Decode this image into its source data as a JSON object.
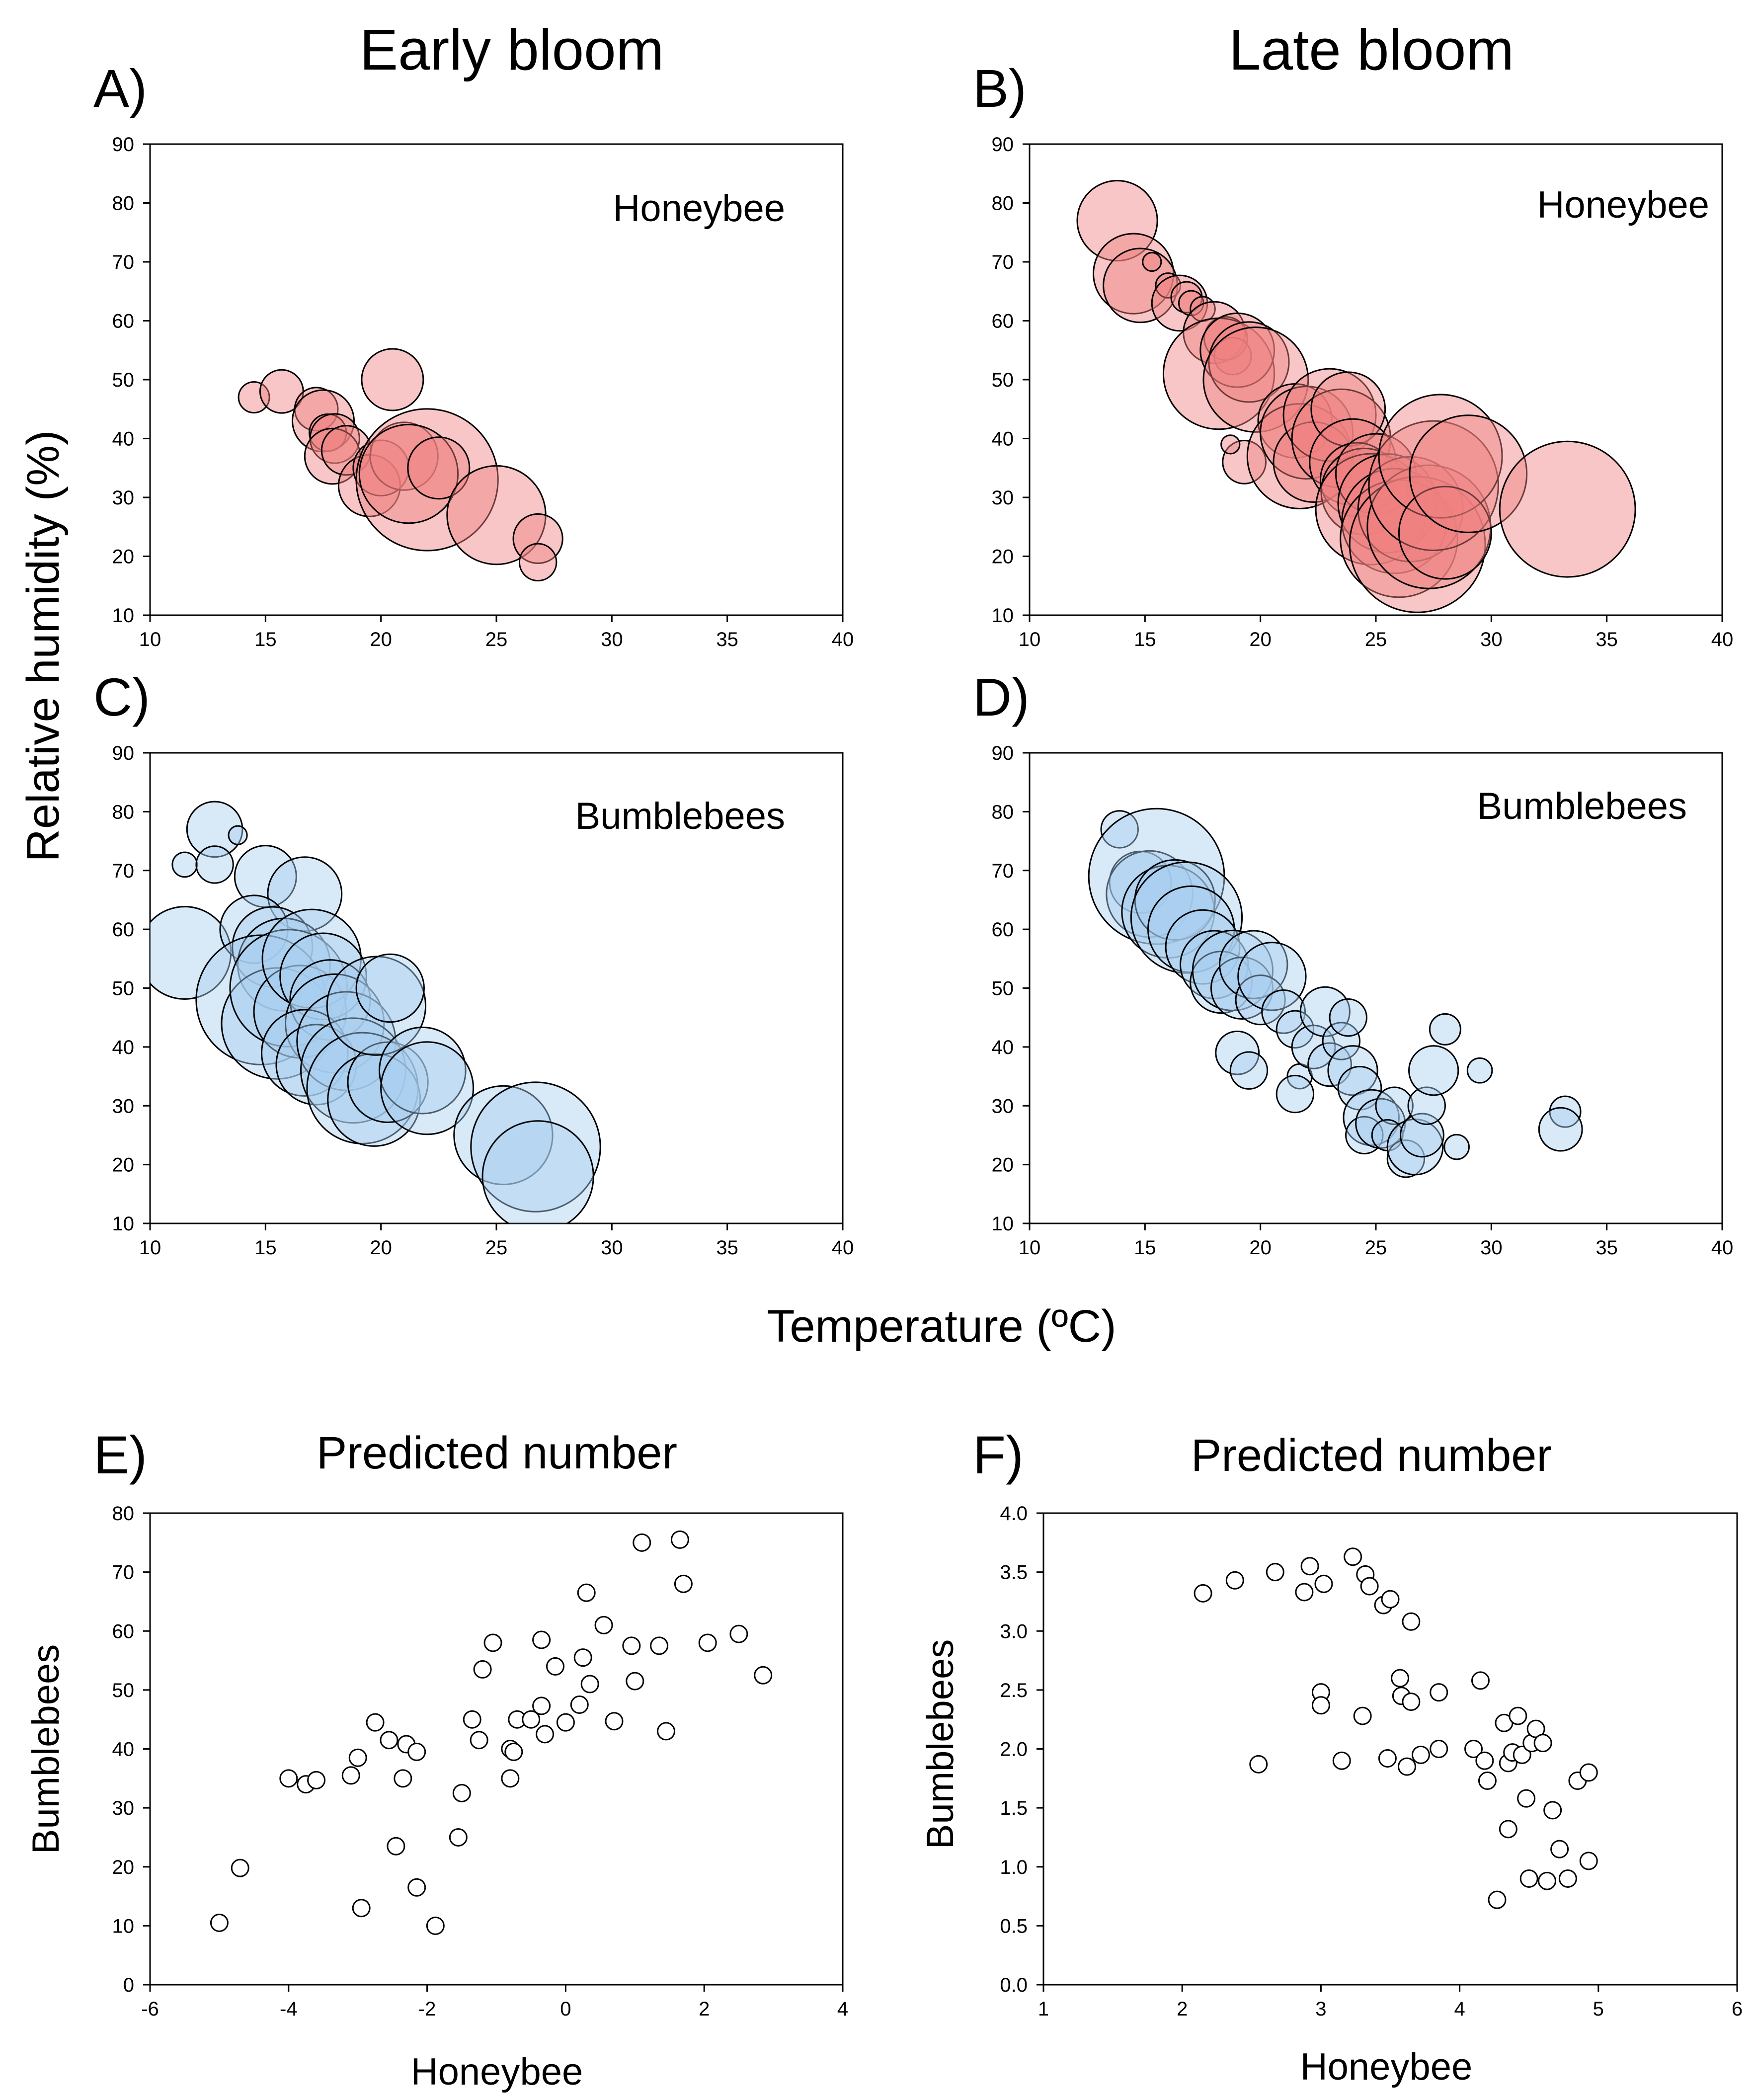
{
  "figure": {
    "col_titles": [
      "Early bloom",
      "Late bloom"
    ],
    "shared_ylabel": "Relative humidity (%)",
    "shared_xlabel": "Temperature (ºC)"
  },
  "chart_data": [
    {
      "id": "A",
      "letter": "A)",
      "type": "scatter",
      "subtype": "bubble",
      "title": "Honeybee",
      "xlim": [
        10,
        40
      ],
      "ylim": [
        10,
        90
      ],
      "xticks": [
        10,
        15,
        20,
        25,
        30,
        35,
        40
      ],
      "yticks": [
        10,
        20,
        30,
        40,
        50,
        60,
        70,
        80,
        90
      ],
      "color": "#f08080",
      "points": [
        [
          14.5,
          47,
          0.5
        ],
        [
          15.7,
          48,
          0.7
        ],
        [
          17.2,
          45,
          0.7
        ],
        [
          17.5,
          43,
          1.0
        ],
        [
          17.7,
          41,
          0.6
        ],
        [
          18.0,
          40,
          0.8
        ],
        [
          17.9,
          37,
          0.9
        ],
        [
          18.5,
          38,
          0.8
        ],
        [
          19.5,
          32,
          1.0
        ],
        [
          20.5,
          50,
          1.0
        ],
        [
          20.0,
          35,
          0.9
        ],
        [
          21.0,
          37,
          1.1
        ],
        [
          22.0,
          33,
          2.3
        ],
        [
          21.2,
          34,
          1.6
        ],
        [
          22.5,
          35,
          1.0
        ],
        [
          25.0,
          27,
          1.6
        ],
        [
          26.8,
          23,
          0.8
        ],
        [
          26.8,
          19,
          0.6
        ]
      ]
    },
    {
      "id": "B",
      "letter": "B)",
      "type": "scatter",
      "subtype": "bubble",
      "title": "Honeybee",
      "xlim": [
        10,
        40
      ],
      "ylim": [
        10,
        90
      ],
      "xticks": [
        10,
        15,
        20,
        25,
        30,
        35,
        40
      ],
      "yticks": [
        10,
        20,
        30,
        40,
        50,
        60,
        70,
        80,
        90
      ],
      "color": "#f08080",
      "points": [
        [
          13.8,
          77,
          1.3
        ],
        [
          14.5,
          68,
          1.3
        ],
        [
          14.8,
          66,
          1.2
        ],
        [
          15.3,
          70,
          0.3
        ],
        [
          16.0,
          66,
          0.4
        ],
        [
          16.5,
          63,
          0.9
        ],
        [
          16.8,
          64,
          0.5
        ],
        [
          17.0,
          63,
          0.4
        ],
        [
          17.5,
          62,
          0.4
        ],
        [
          18.0,
          58,
          1.0
        ],
        [
          18.5,
          57,
          0.7
        ],
        [
          18.8,
          54,
          0.6
        ],
        [
          18.2,
          51,
          1.8
        ],
        [
          19.0,
          55,
          1.2
        ],
        [
          19.5,
          53,
          1.3
        ],
        [
          19.8,
          50,
          1.7
        ],
        [
          19.3,
          36,
          0.7
        ],
        [
          18.7,
          39,
          0.3
        ],
        [
          21.5,
          43,
          1.2
        ],
        [
          21.7,
          37,
          1.7
        ],
        [
          22.0,
          41,
          1.5
        ],
        [
          22.3,
          36,
          1.3
        ],
        [
          23.0,
          44,
          1.5
        ],
        [
          23.5,
          40,
          1.6
        ],
        [
          23.8,
          45,
          1.2
        ],
        [
          24.0,
          36,
          1.4
        ],
        [
          24.2,
          33,
          1.2
        ],
        [
          24.5,
          31,
          1.4
        ],
        [
          24.8,
          28,
          1.8
        ],
        [
          25.0,
          34,
          1.3
        ],
        [
          25.5,
          29,
          1.6
        ],
        [
          25.8,
          26,
          1.7
        ],
        [
          26.0,
          23,
          1.9
        ],
        [
          26.5,
          28,
          1.7
        ],
        [
          26.8,
          22,
          2.2
        ],
        [
          27.3,
          25,
          2.0
        ],
        [
          27.5,
          32,
          2.1
        ],
        [
          27.8,
          37,
          2.0
        ],
        [
          28.0,
          24,
          1.5
        ],
        [
          29.0,
          34,
          1.9
        ],
        [
          33.3,
          28,
          2.2
        ]
      ]
    },
    {
      "id": "C",
      "letter": "C)",
      "type": "scatter",
      "subtype": "bubble",
      "title": "Bumblebees",
      "xlim": [
        10,
        40
      ],
      "ylim": [
        10,
        90
      ],
      "xticks": [
        10,
        15,
        20,
        25,
        30,
        35,
        40
      ],
      "yticks": [
        10,
        20,
        30,
        40,
        50,
        60,
        70,
        80,
        90
      ],
      "color": "#a8cef0",
      "points": [
        [
          11.5,
          71,
          0.4
        ],
        [
          12.8,
          77,
          0.9
        ],
        [
          12.8,
          71,
          0.6
        ],
        [
          13.8,
          76,
          0.3
        ],
        [
          11.5,
          56,
          1.5
        ],
        [
          15.0,
          69,
          1.0
        ],
        [
          16.7,
          66,
          1.2
        ],
        [
          14.5,
          60,
          1.1
        ],
        [
          15.3,
          57,
          1.3
        ],
        [
          15.8,
          54,
          1.5
        ],
        [
          14.8,
          48,
          2.1
        ],
        [
          15.5,
          44,
          1.8
        ],
        [
          16.0,
          50,
          1.9
        ],
        [
          16.5,
          46,
          1.5
        ],
        [
          17.0,
          55,
          1.6
        ],
        [
          17.5,
          52,
          1.4
        ],
        [
          17.8,
          48,
          1.3
        ],
        [
          18.0,
          44,
          1.6
        ],
        [
          16.7,
          39,
          1.4
        ],
        [
          17.2,
          37,
          1.3
        ],
        [
          18.5,
          41,
          1.6
        ],
        [
          18.8,
          36,
          1.7
        ],
        [
          19.2,
          33,
          1.8
        ],
        [
          19.7,
          31,
          1.5
        ],
        [
          20.3,
          34,
          1.3
        ],
        [
          19.8,
          47,
          1.6
        ],
        [
          20.4,
          50,
          1.1
        ],
        [
          21.8,
          36,
          1.4
        ],
        [
          22.0,
          33,
          1.5
        ],
        [
          25.3,
          25,
          1.6
        ],
        [
          26.7,
          23,
          2.1
        ],
        [
          26.8,
          18,
          1.8
        ]
      ]
    },
    {
      "id": "D",
      "letter": "D)",
      "type": "scatter",
      "subtype": "bubble",
      "title": "Bumblebees",
      "xlim": [
        10,
        40
      ],
      "ylim": [
        10,
        90
      ],
      "xticks": [
        10,
        15,
        20,
        25,
        30,
        35,
        40
      ],
      "yticks": [
        10,
        20,
        30,
        40,
        50,
        60,
        70,
        80,
        90
      ],
      "color": "#a8cef0",
      "points": [
        [
          13.9,
          77,
          0.6
        ],
        [
          14.8,
          68,
          1.0
        ],
        [
          15.2,
          66,
          1.4
        ],
        [
          15.5,
          69,
          2.2
        ],
        [
          16.0,
          63,
          1.5
        ],
        [
          16.3,
          65,
          1.3
        ],
        [
          16.8,
          62,
          1.8
        ],
        [
          17.0,
          60,
          1.4
        ],
        [
          17.5,
          57,
          1.2
        ],
        [
          18.0,
          54,
          1.1
        ],
        [
          18.3,
          51,
          1.0
        ],
        [
          18.8,
          53,
          1.3
        ],
        [
          19.2,
          50,
          1.0
        ],
        [
          19.7,
          54,
          1.1
        ],
        [
          20.0,
          48,
          0.8
        ],
        [
          20.5,
          52,
          1.1
        ],
        [
          21.0,
          46,
          0.7
        ],
        [
          19.0,
          39,
          0.7
        ],
        [
          19.5,
          36,
          0.6
        ],
        [
          21.5,
          43,
          0.6
        ],
        [
          21.7,
          35,
          0.4
        ],
        [
          21.5,
          32,
          0.6
        ],
        [
          22.3,
          40,
          0.7
        ],
        [
          22.8,
          46,
          0.8
        ],
        [
          23.0,
          37,
          0.7
        ],
        [
          23.5,
          41,
          0.6
        ],
        [
          23.8,
          45,
          0.6
        ],
        [
          24.0,
          36,
          0.8
        ],
        [
          24.3,
          33,
          0.7
        ],
        [
          24.8,
          28,
          0.9
        ],
        [
          24.5,
          25,
          0.6
        ],
        [
          25.2,
          27,
          0.8
        ],
        [
          25.8,
          30,
          0.6
        ],
        [
          25.5,
          25,
          0.5
        ],
        [
          26.3,
          21,
          0.6
        ],
        [
          26.7,
          23,
          0.9
        ],
        [
          27.0,
          25,
          0.7
        ],
        [
          27.2,
          30,
          0.6
        ],
        [
          27.5,
          36,
          0.8
        ],
        [
          28.0,
          43,
          0.5
        ],
        [
          28.5,
          23,
          0.4
        ],
        [
          29.5,
          36,
          0.4
        ],
        [
          33.2,
          29,
          0.5
        ],
        [
          33.0,
          26,
          0.7
        ]
      ]
    },
    {
      "id": "E",
      "letter": "E)",
      "type": "scatter",
      "title": "Predicted number",
      "xlabel": "Honeybee",
      "ylabel": "Bumblebees",
      "xlim": [
        -6,
        4
      ],
      "ylim": [
        0,
        80
      ],
      "xticks": [
        -6,
        -4,
        -2,
        0,
        2,
        4
      ],
      "yticks": [
        0,
        10,
        20,
        30,
        40,
        50,
        60,
        70,
        80
      ],
      "points": [
        [
          -5.0,
          10.5
        ],
        [
          -4.7,
          19.8
        ],
        [
          -4.0,
          35.0
        ],
        [
          -3.75,
          34.0
        ],
        [
          -3.6,
          34.7
        ],
        [
          -3.1,
          35.5
        ],
        [
          -3.0,
          38.5
        ],
        [
          -2.95,
          13.0
        ],
        [
          -2.75,
          44.5
        ],
        [
          -2.55,
          41.5
        ],
        [
          -2.45,
          23.5
        ],
        [
          -2.35,
          35.0
        ],
        [
          -2.3,
          40.8
        ],
        [
          -2.15,
          39.5
        ],
        [
          -2.15,
          16.5
        ],
        [
          -1.88,
          10.0
        ],
        [
          -1.55,
          25.0
        ],
        [
          -1.5,
          32.5
        ],
        [
          -1.35,
          45.0
        ],
        [
          -1.25,
          41.5
        ],
        [
          -1.2,
          53.5
        ],
        [
          -1.05,
          58.0
        ],
        [
          -0.8,
          35.0
        ],
        [
          -0.8,
          40.0
        ],
        [
          -0.75,
          39.5
        ],
        [
          -0.7,
          45.0
        ],
        [
          -0.5,
          45.0
        ],
        [
          -0.35,
          47.3
        ],
        [
          -0.35,
          58.5
        ],
        [
          -0.3,
          42.5
        ],
        [
          -0.15,
          54.0
        ],
        [
          0.0,
          44.5
        ],
        [
          0.2,
          47.5
        ],
        [
          0.25,
          55.5
        ],
        [
          0.3,
          66.5
        ],
        [
          0.35,
          51.0
        ],
        [
          0.55,
          61.0
        ],
        [
          0.7,
          44.7
        ],
        [
          0.95,
          57.5
        ],
        [
          1.0,
          51.5
        ],
        [
          1.1,
          75.0
        ],
        [
          1.35,
          57.5
        ],
        [
          1.45,
          43.0
        ],
        [
          1.65,
          75.5
        ],
        [
          1.7,
          68.0
        ],
        [
          2.05,
          58.0
        ],
        [
          2.5,
          59.5
        ],
        [
          2.85,
          52.5
        ]
      ]
    },
    {
      "id": "F",
      "letter": "F)",
      "type": "scatter",
      "title": "Predicted number",
      "xlabel": "Honeybee",
      "ylabel": "Bumblebees",
      "xlim": [
        1,
        6
      ],
      "ylim": [
        0.0,
        4.0
      ],
      "xticks": [
        1,
        2,
        3,
        4,
        5,
        6
      ],
      "yticks": [
        "0.0",
        "0.5",
        "1.0",
        "1.5",
        "2.0",
        "2.5",
        "3.0",
        "3.5",
        "4.0"
      ],
      "points": [
        [
          2.15,
          3.32
        ],
        [
          2.38,
          3.43
        ],
        [
          2.55,
          1.87
        ],
        [
          2.67,
          3.5
        ],
        [
          2.88,
          3.33
        ],
        [
          2.92,
          3.55
        ],
        [
          3.0,
          2.48
        ],
        [
          3.0,
          2.37
        ],
        [
          3.02,
          3.4
        ],
        [
          3.15,
          1.9
        ],
        [
          3.23,
          3.63
        ],
        [
          3.3,
          2.28
        ],
        [
          3.32,
          3.48
        ],
        [
          3.35,
          3.38
        ],
        [
          3.45,
          3.22
        ],
        [
          3.48,
          1.92
        ],
        [
          3.5,
          3.27
        ],
        [
          3.57,
          2.6
        ],
        [
          3.58,
          2.45
        ],
        [
          3.62,
          1.85
        ],
        [
          3.65,
          2.4
        ],
        [
          3.65,
          3.08
        ],
        [
          3.72,
          1.95
        ],
        [
          3.85,
          2.0
        ],
        [
          3.85,
          2.48
        ],
        [
          4.1,
          2.0
        ],
        [
          4.15,
          2.58
        ],
        [
          4.18,
          1.9
        ],
        [
          4.2,
          1.73
        ],
        [
          4.32,
          2.22
        ],
        [
          4.35,
          1.88
        ],
        [
          4.35,
          1.32
        ],
        [
          4.38,
          1.97
        ],
        [
          4.42,
          2.28
        ],
        [
          4.45,
          1.95
        ],
        [
          4.48,
          1.58
        ],
        [
          4.5,
          0.9
        ],
        [
          4.52,
          2.05
        ],
        [
          4.55,
          2.17
        ],
        [
          4.6,
          2.05
        ],
        [
          4.63,
          0.88
        ],
        [
          4.67,
          1.48
        ],
        [
          4.72,
          1.15
        ],
        [
          4.78,
          0.9
        ],
        [
          4.85,
          1.73
        ],
        [
          4.93,
          1.05
        ],
        [
          4.93,
          1.8
        ],
        [
          4.27,
          0.72
        ]
      ]
    }
  ]
}
